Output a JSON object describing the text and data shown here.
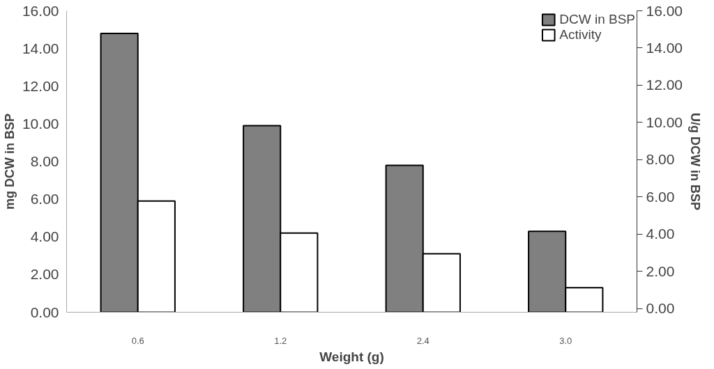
{
  "chart_data": {
    "type": "bar",
    "xlabel": "Weight (g)",
    "ylabel": "mg DCW in BSP",
    "y2label": "U/g DCW in BSP",
    "categories": [
      "0.6",
      "1.2",
      "2.4",
      "3.0"
    ],
    "series": [
      {
        "name": "DCW in BSP",
        "color": "#808080",
        "values": [
          14.8,
          9.9,
          7.8,
          4.3
        ]
      },
      {
        "name": "Activity",
        "color": "#ffffff",
        "values": [
          5.9,
          4.2,
          3.1,
          1.3
        ]
      }
    ],
    "ylim": [
      0,
      16
    ],
    "yticks": [
      {
        "value": 0,
        "label": "0.00"
      },
      {
        "value": 2,
        "label": "2.00"
      },
      {
        "value": 4,
        "label": "4.00"
      },
      {
        "value": 6,
        "label": "6.00"
      },
      {
        "value": 8,
        "label": "8.00"
      },
      {
        "value": 10,
        "label": "10.00"
      },
      {
        "value": 12,
        "label": "12.00"
      },
      {
        "value": 14,
        "label": "14.00"
      },
      {
        "value": 16,
        "label": "16.00"
      }
    ],
    "y2lim": [
      -0.2,
      16
    ],
    "y2ticks": [
      {
        "value": 0,
        "label": "0.00"
      },
      {
        "value": 2,
        "label": "2.00"
      },
      {
        "value": 4,
        "label": "4.00"
      },
      {
        "value": 6,
        "label": "6.00"
      },
      {
        "value": 8,
        "label": "8.00"
      },
      {
        "value": 10,
        "label": "10.00"
      },
      {
        "value": 12,
        "label": "12.00"
      },
      {
        "value": 14,
        "label": "14.00"
      },
      {
        "value": 16,
        "label": "16.00"
      }
    ],
    "grid": false,
    "legend": "top right"
  }
}
